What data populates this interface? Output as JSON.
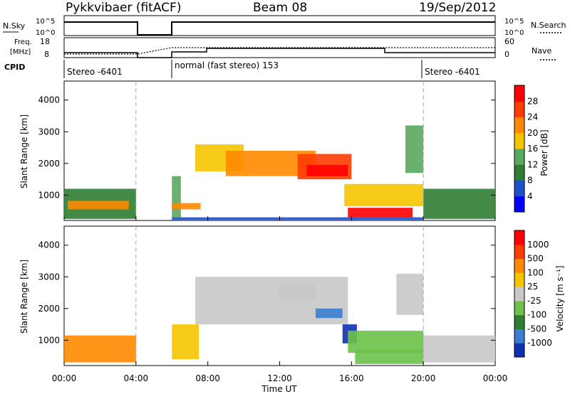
{
  "header": {
    "radar": "Pykkvibaer (fitACF)",
    "beam": "Beam 08",
    "date": "19/Sep/2012"
  },
  "sky_panel": {
    "left_label": "N.Sky",
    "right_label": "N.Search",
    "left_ticks": [
      "10^5",
      "10^0"
    ],
    "right_ticks": [
      "10^5",
      "10^0"
    ]
  },
  "freq_panel": {
    "left_label_1": "Freq.",
    "left_label_2": "[MHz]",
    "right_label": "Nave",
    "left_ticks": [
      "18",
      "8"
    ],
    "right_ticks": [
      "60",
      "0"
    ]
  },
  "cpid": {
    "label": "CPID",
    "segments": [
      "Stereo -6401",
      "normal (fast stereo) 153",
      "Stereo -6401"
    ]
  },
  "chart_data": [
    {
      "type": "heatmap",
      "name": "power",
      "ylabel": "Slant Range [km]",
      "yticks": [
        "1000",
        "2000",
        "3000",
        "4000"
      ],
      "ylim": [
        200,
        4600
      ],
      "xlim": [
        0,
        24
      ],
      "xticks": [
        "00:00",
        "04:00",
        "08:00",
        "12:00",
        "16:00",
        "20:00",
        "00:00"
      ],
      "colorbar": {
        "label": "Power [dB]",
        "ticks": [
          "4",
          "8",
          "12",
          "16",
          "20",
          "24",
          "28"
        ],
        "colors": [
          "#0000ff",
          "#1e50c8",
          "#2e7d32",
          "#5aa860",
          "#f5c400",
          "#ff8a00",
          "#ff3c00",
          "#ff0000"
        ]
      },
      "regions": [
        {
          "t0": 0.0,
          "t1": 4.0,
          "r0": 250,
          "r1": 1200,
          "level": 2
        },
        {
          "t0": 0.2,
          "t1": 3.6,
          "r0": 550,
          "r1": 820,
          "level": 5
        },
        {
          "t0": 6.0,
          "t1": 6.5,
          "r0": 300,
          "r1": 1600,
          "level": 3
        },
        {
          "t0": 6.0,
          "t1": 7.6,
          "r0": 550,
          "r1": 750,
          "level": 5
        },
        {
          "t0": 7.3,
          "t1": 10.0,
          "r0": 1750,
          "r1": 2600,
          "level": 4
        },
        {
          "t0": 9.0,
          "t1": 14.0,
          "r0": 1600,
          "r1": 2400,
          "level": 5
        },
        {
          "t0": 13.0,
          "t1": 16.0,
          "r0": 1500,
          "r1": 2300,
          "level": 6
        },
        {
          "t0": 13.5,
          "t1": 15.8,
          "r0": 1600,
          "r1": 1950,
          "level": 7
        },
        {
          "t0": 15.6,
          "t1": 20.0,
          "r0": 650,
          "r1": 1350,
          "level": 4
        },
        {
          "t0": 15.8,
          "t1": 19.4,
          "r0": 300,
          "r1": 600,
          "level": 7
        },
        {
          "t0": 19.0,
          "t1": 20.0,
          "r0": 1700,
          "r1": 3200,
          "level": 3
        },
        {
          "t0": 20.0,
          "t1": 24.0,
          "r0": 250,
          "r1": 1200,
          "level": 2
        },
        {
          "t0": 6.0,
          "t1": 20.0,
          "r0": 220,
          "r1": 300,
          "level": 1
        }
      ]
    },
    {
      "type": "heatmap",
      "name": "velocity",
      "ylabel": "Slant Range [km]",
      "yticks": [
        "1000",
        "2000",
        "3000",
        "4000"
      ],
      "ylim": [
        200,
        4600
      ],
      "xlim": [
        0,
        24
      ],
      "xticks": [
        "00:00",
        "04:00",
        "08:00",
        "12:00",
        "16:00",
        "20:00",
        "00:00"
      ],
      "xlabel": "Time UT",
      "colorbar": {
        "label": "Velocity [m s⁻¹]",
        "ticks": [
          "1000",
          "500",
          "100",
          "25",
          "-25",
          "-100",
          "-500",
          "-1000"
        ],
        "colors": [
          "#1030b0",
          "#3c7dd0",
          "#2e7d32",
          "#6cc24a",
          "#c8c8c8",
          "#f5c400",
          "#ff8a00",
          "#ff3c00",
          "#ff0000"
        ]
      },
      "regions": [
        {
          "t0": 0.0,
          "t1": 4.0,
          "r0": 300,
          "r1": 1150,
          "level": 6
        },
        {
          "t0": 6.0,
          "t1": 7.5,
          "r0": 400,
          "r1": 1500,
          "level": 5
        },
        {
          "t0": 7.3,
          "t1": 15.8,
          "r0": 1500,
          "r1": 3000,
          "level": 4
        },
        {
          "t0": 12.0,
          "t1": 14.0,
          "r0": 2300,
          "r1": 2800,
          "level": 4
        },
        {
          "t0": 14.0,
          "t1": 15.5,
          "r0": 1700,
          "r1": 2000,
          "level": 1
        },
        {
          "t0": 15.5,
          "t1": 16.3,
          "r0": 900,
          "r1": 1500,
          "level": 0
        },
        {
          "t0": 15.8,
          "t1": 20.0,
          "r0": 600,
          "r1": 1300,
          "level": 3
        },
        {
          "t0": 16.2,
          "t1": 20.0,
          "r0": 250,
          "r1": 700,
          "level": 3
        },
        {
          "t0": 20.0,
          "t1": 24.0,
          "r0": 300,
          "r1": 1150,
          "level": 4
        },
        {
          "t0": 18.5,
          "t1": 20.0,
          "r0": 1800,
          "r1": 3100,
          "level": 4
        }
      ]
    }
  ]
}
